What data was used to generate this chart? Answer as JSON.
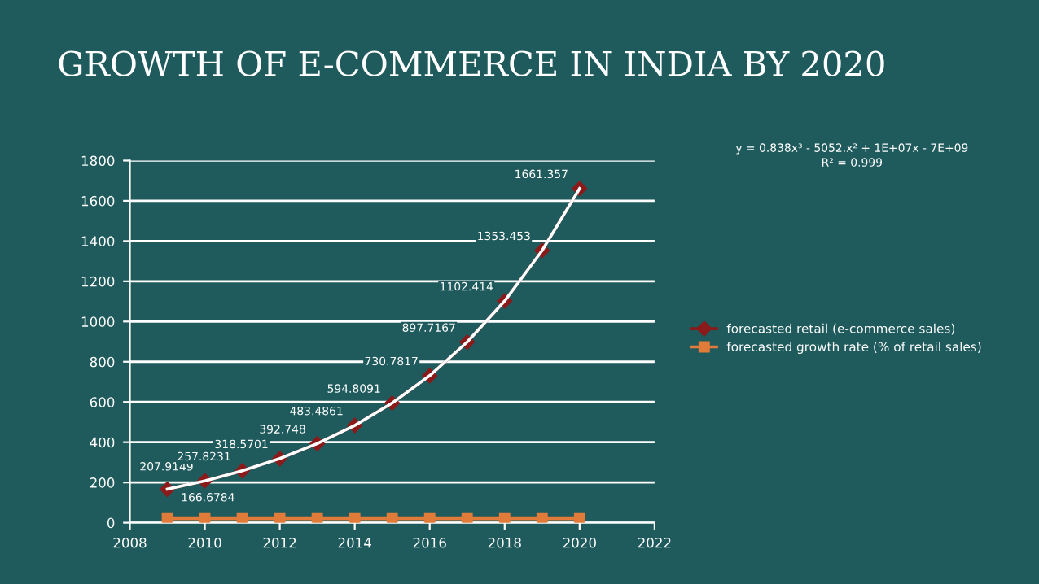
{
  "chart_data": {
    "type": "line",
    "title": "GROWTH OF E-COMMERCE IN INDIA BY 2020",
    "x": [
      2009,
      2010,
      2011,
      2012,
      2013,
      2014,
      2015,
      2016,
      2017,
      2018,
      2019,
      2020
    ],
    "series": [
      {
        "name": "forecasted retail (e-commerce sales)",
        "color": "#8b1a1a",
        "marker": "diamond",
        "values": [
          166.6784,
          207.9149,
          257.8231,
          318.5701,
          392.748,
          483.4861,
          594.8091,
          730.7817,
          897.7167,
          1102.414,
          1353.453,
          1661.357
        ],
        "value_labels": [
          "166.6784",
          "207.9149",
          "257.8231",
          "318.5701",
          "392.748",
          "483.4861",
          "594.8091",
          "730.7817",
          "897.7167",
          "1102.414",
          "1353.453",
          "1661.357"
        ]
      },
      {
        "name": "forecasted growth rate (% of retail sales)",
        "color": "#e07b39",
        "marker": "square",
        "values": [
          20,
          20,
          20,
          20,
          20,
          20,
          20,
          20,
          20,
          20,
          20,
          20
        ]
      },
      {
        "type": "line",
        "color": "#ffffff",
        "marker": "none",
        "values": [
          167,
          208,
          258,
          319,
          393,
          483,
          595,
          731,
          898,
          1102,
          1353,
          1661
        ]
      }
    ],
    "annotations": [
      "y = 0.838x³ - 5052.x² + 1E+07x - 7E+09",
      "R² = 0.999"
    ],
    "xlim": [
      2008,
      2022
    ],
    "xticks": [
      2008,
      2010,
      2012,
      2014,
      2016,
      2018,
      2020,
      2022
    ],
    "ylim": [
      0,
      1800
    ],
    "yticks": [
      0,
      200,
      400,
      600,
      800,
      1000,
      1200,
      1400,
      1600,
      1800
    ],
    "grid": "y",
    "legend": "right"
  }
}
